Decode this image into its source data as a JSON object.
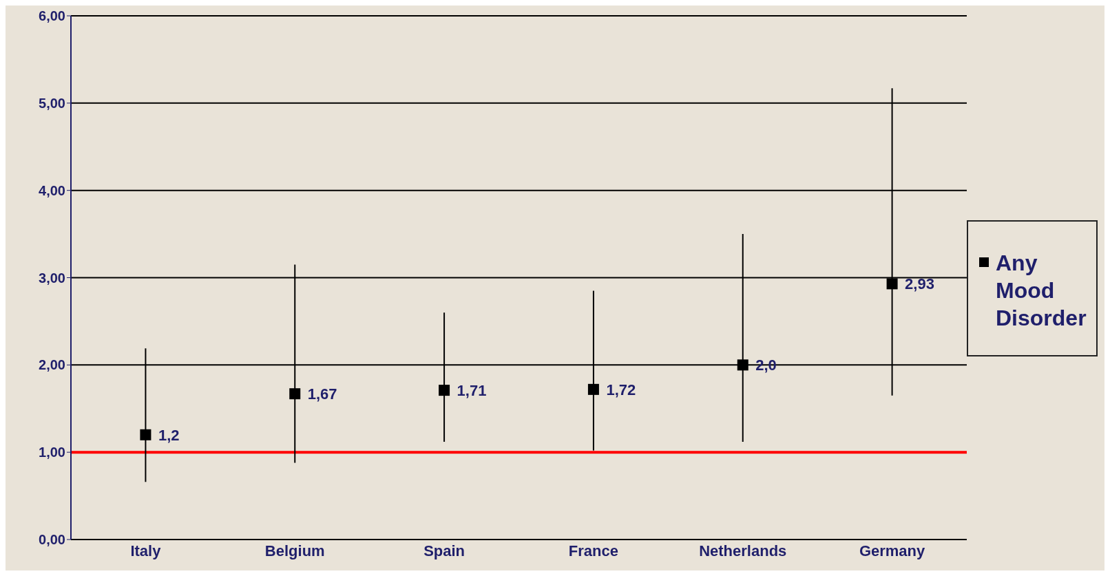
{
  "chart_data": {
    "type": "scatter",
    "categories": [
      "Italy",
      "Belgium",
      "Spain",
      "France",
      "Netherlands",
      "Germany"
    ],
    "series": [
      {
        "name": "Any Mood Disorder",
        "color": "#000000",
        "values": [
          1.2,
          1.67,
          1.71,
          1.72,
          2.0,
          2.93
        ],
        "errors": [
          [
            0.66,
            2.19
          ],
          [
            0.88,
            3.15
          ],
          [
            1.12,
            2.6
          ],
          [
            1.02,
            2.85
          ],
          [
            1.12,
            3.5
          ],
          [
            1.65,
            5.17
          ]
        ],
        "value_labels": [
          "1,2",
          "1,67",
          "1,71",
          "1,72",
          "2,0",
          "2,93"
        ]
      }
    ],
    "ylim": [
      0,
      6
    ],
    "yticks": [
      {
        "value": 0,
        "label": "0,00"
      },
      {
        "value": 1,
        "label": "1,00"
      },
      {
        "value": 2,
        "label": "2,00"
      },
      {
        "value": 3,
        "label": "3,00"
      },
      {
        "value": 4,
        "label": "4,00"
      },
      {
        "value": 5,
        "label": "5,00"
      },
      {
        "value": 6,
        "label": "6,00"
      }
    ],
    "ref_lines": [
      {
        "axis": "y",
        "value": 1,
        "color": "#ff0000"
      }
    ],
    "grid": "y",
    "legend": "right",
    "marker": "square"
  }
}
